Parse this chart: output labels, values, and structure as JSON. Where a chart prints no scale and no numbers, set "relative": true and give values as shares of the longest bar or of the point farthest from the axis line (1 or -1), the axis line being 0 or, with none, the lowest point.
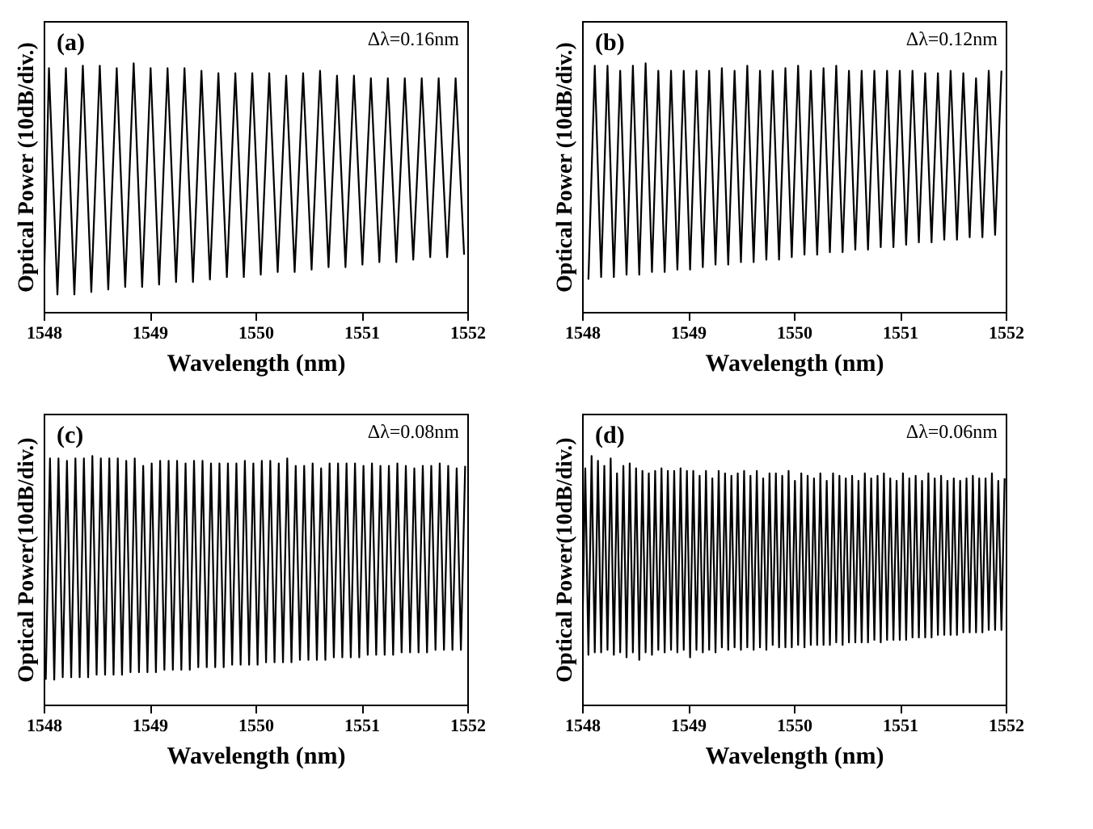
{
  "chart_data": [
    {
      "type": "line",
      "relative": true,
      "xlim": [
        1548,
        1552
      ],
      "xticks": [
        1548,
        1549,
        1550,
        1551,
        1552
      ],
      "xlabel": "Wavelength (nm)",
      "ylabel": "Optical Power (10dB/div.)",
      "annotations": [
        "(a)",
        "Δλ=0.16nm"
      ],
      "series": [
        {
          "color": "#000000",
          "x": [
            1548.0,
            1548.05,
            1548.13,
            1548.21,
            1548.29,
            1548.37,
            1548.45,
            1548.53,
            1548.61,
            1548.69,
            1548.77,
            1548.85,
            1548.93,
            1549.01,
            1549.09,
            1549.17,
            1549.25,
            1549.33,
            1549.41,
            1549.49,
            1549.57,
            1549.65,
            1549.73,
            1549.81,
            1549.89,
            1549.97,
            1550.05,
            1550.13,
            1550.21,
            1550.29,
            1550.37,
            1550.45,
            1550.53,
            1550.61,
            1550.69,
            1550.77,
            1550.85,
            1550.93,
            1551.01,
            1551.09,
            1551.17,
            1551.25,
            1551.33,
            1551.41,
            1551.49,
            1551.57,
            1551.65,
            1551.73,
            1551.81,
            1551.89,
            1551.97
          ],
          "values": [
            0.05,
            0.98,
            0.07,
            0.98,
            0.07,
            0.99,
            0.08,
            0.99,
            0.09,
            0.98,
            0.1,
            1.0,
            0.1,
            0.98,
            0.11,
            0.98,
            0.12,
            0.98,
            0.12,
            0.97,
            0.13,
            0.96,
            0.14,
            0.96,
            0.14,
            0.96,
            0.15,
            0.96,
            0.16,
            0.95,
            0.16,
            0.96,
            0.17,
            0.97,
            0.18,
            0.95,
            0.18,
            0.95,
            0.19,
            0.94,
            0.2,
            0.94,
            0.2,
            0.94,
            0.21,
            0.94,
            0.22,
            0.94,
            0.22,
            0.94,
            0.23
          ]
        }
      ]
    },
    {
      "type": "line",
      "relative": true,
      "xlim": [
        1548,
        1552
      ],
      "xticks": [
        1548,
        1549,
        1550,
        1551,
        1552
      ],
      "xlabel": "Wavelength (nm)",
      "ylabel": "Optical Power (10dB/div.)",
      "annotations": [
        "(b)",
        "Δλ=0.12nm"
      ],
      "series": [
        {
          "color": "#000000",
          "x": [
            1548.06,
            1548.12,
            1548.18,
            1548.24,
            1548.3,
            1548.36,
            1548.42,
            1548.48,
            1548.54,
            1548.6,
            1548.66,
            1548.72,
            1548.78,
            1548.84,
            1548.9,
            1548.96,
            1549.02,
            1549.08,
            1549.14,
            1549.2,
            1549.26,
            1549.32,
            1549.38,
            1549.44,
            1549.5,
            1549.56,
            1549.62,
            1549.68,
            1549.74,
            1549.8,
            1549.86,
            1549.92,
            1549.98,
            1550.04,
            1550.1,
            1550.16,
            1550.22,
            1550.28,
            1550.34,
            1550.4,
            1550.46,
            1550.52,
            1550.58,
            1550.64,
            1550.7,
            1550.76,
            1550.82,
            1550.88,
            1550.94,
            1551.0,
            1551.06,
            1551.12,
            1551.18,
            1551.24,
            1551.3,
            1551.36,
            1551.42,
            1551.48,
            1551.54,
            1551.6,
            1551.66,
            1551.72,
            1551.78,
            1551.84,
            1551.9,
            1551.96
          ],
          "values": [
            0.13,
            0.99,
            0.14,
            0.99,
            0.14,
            0.97,
            0.15,
            0.99,
            0.15,
            1.0,
            0.16,
            0.97,
            0.16,
            0.97,
            0.17,
            0.97,
            0.17,
            0.97,
            0.18,
            0.97,
            0.19,
            0.98,
            0.19,
            0.97,
            0.2,
            0.99,
            0.2,
            0.97,
            0.21,
            0.97,
            0.21,
            0.98,
            0.22,
            0.99,
            0.23,
            0.97,
            0.23,
            0.98,
            0.24,
            0.99,
            0.24,
            0.97,
            0.25,
            0.97,
            0.25,
            0.97,
            0.26,
            0.97,
            0.26,
            0.97,
            0.27,
            0.97,
            0.28,
            0.96,
            0.28,
            0.96,
            0.29,
            0.97,
            0.29,
            0.96,
            0.3,
            0.94,
            0.3,
            0.97,
            0.31,
            0.97
          ]
        }
      ]
    },
    {
      "type": "line",
      "relative": true,
      "xlim": [
        1548,
        1552
      ],
      "xticks": [
        1548,
        1549,
        1550,
        1551,
        1552
      ],
      "xlabel": "Wavelength (nm)",
      "ylabel": "Optical Power(10dB/div.)",
      "annotations": [
        "(c)",
        "Δλ=0.08nm"
      ],
      "series": [
        {
          "color": "#000000",
          "x": [
            1548.02,
            1548.06,
            1548.1,
            1548.14,
            1548.18,
            1548.22,
            1548.26,
            1548.3,
            1548.34,
            1548.38,
            1548.42,
            1548.46,
            1548.5,
            1548.54,
            1548.58,
            1548.62,
            1548.66,
            1548.7,
            1548.74,
            1548.78,
            1548.82,
            1548.86,
            1548.9,
            1548.94,
            1548.98,
            1549.02,
            1549.06,
            1549.1,
            1549.14,
            1549.18,
            1549.22,
            1549.26,
            1549.3,
            1549.34,
            1549.38,
            1549.42,
            1549.46,
            1549.5,
            1549.54,
            1549.58,
            1549.62,
            1549.66,
            1549.7,
            1549.74,
            1549.78,
            1549.82,
            1549.86,
            1549.9,
            1549.94,
            1549.98,
            1550.02,
            1550.06,
            1550.1,
            1550.14,
            1550.18,
            1550.22,
            1550.26,
            1550.3,
            1550.34,
            1550.38,
            1550.42,
            1550.46,
            1550.5,
            1550.54,
            1550.58,
            1550.62,
            1550.66,
            1550.7,
            1550.74,
            1550.78,
            1550.82,
            1550.86,
            1550.9,
            1550.94,
            1550.98,
            1551.02,
            1551.06,
            1551.1,
            1551.14,
            1551.18,
            1551.22,
            1551.26,
            1551.3,
            1551.34,
            1551.38,
            1551.42,
            1551.46,
            1551.5,
            1551.54,
            1551.58,
            1551.62,
            1551.66,
            1551.7,
            1551.74,
            1551.78,
            1551.82,
            1551.86,
            1551.9,
            1551.94,
            1551.98
          ],
          "values": [
            0.1,
            0.99,
            0.1,
            0.99,
            0.11,
            0.98,
            0.11,
            0.99,
            0.11,
            0.99,
            0.11,
            1.0,
            0.12,
            0.99,
            0.12,
            0.99,
            0.12,
            0.99,
            0.12,
            0.98,
            0.13,
            0.99,
            0.13,
            0.96,
            0.13,
            0.97,
            0.13,
            0.98,
            0.14,
            0.98,
            0.14,
            0.98,
            0.14,
            0.97,
            0.14,
            0.98,
            0.15,
            0.98,
            0.15,
            0.97,
            0.15,
            0.97,
            0.15,
            0.97,
            0.16,
            0.97,
            0.16,
            0.98,
            0.16,
            0.97,
            0.16,
            0.98,
            0.17,
            0.98,
            0.17,
            0.97,
            0.17,
            0.99,
            0.17,
            0.96,
            0.18,
            0.96,
            0.18,
            0.97,
            0.18,
            0.95,
            0.18,
            0.97,
            0.19,
            0.97,
            0.19,
            0.97,
            0.19,
            0.97,
            0.19,
            0.96,
            0.2,
            0.97,
            0.2,
            0.96,
            0.2,
            0.96,
            0.2,
            0.97,
            0.21,
            0.96,
            0.21,
            0.95,
            0.21,
            0.96,
            0.21,
            0.96,
            0.22,
            0.97,
            0.22,
            0.96,
            0.22,
            0.95,
            0.22,
            0.96
          ]
        }
      ]
    },
    {
      "type": "line",
      "relative": true,
      "xlim": [
        1548,
        1552
      ],
      "xticks": [
        1548,
        1549,
        1550,
        1551,
        1552
      ],
      "xlabel": "Wavelength (nm)",
      "ylabel": "Optical Power(10dB/div.)",
      "annotations": [
        "(d)",
        "Δλ=0.06nm"
      ],
      "series": [
        {
          "color": "#000000",
          "x": [
            1548.0,
            1548.03,
            1548.06,
            1548.09,
            1548.12,
            1548.15,
            1548.18,
            1548.21,
            1548.24,
            1548.27,
            1548.3,
            1548.33,
            1548.36,
            1548.39,
            1548.42,
            1548.45,
            1548.48,
            1548.51,
            1548.54,
            1548.57,
            1548.6,
            1548.63,
            1548.66,
            1548.69,
            1548.72,
            1548.75,
            1548.78,
            1548.81,
            1548.84,
            1548.87,
            1548.9,
            1548.93,
            1548.96,
            1548.99,
            1549.02,
            1549.05,
            1549.08,
            1549.11,
            1549.14,
            1549.17,
            1549.2,
            1549.23,
            1549.26,
            1549.29,
            1549.32,
            1549.35,
            1549.38,
            1549.41,
            1549.44,
            1549.47,
            1549.5,
            1549.53,
            1549.56,
            1549.59,
            1549.62,
            1549.65,
            1549.68,
            1549.71,
            1549.74,
            1549.77,
            1549.8,
            1549.83,
            1549.86,
            1549.89,
            1549.92,
            1549.95,
            1549.98,
            1550.01,
            1550.04,
            1550.07,
            1550.1,
            1550.13,
            1550.16,
            1550.19,
            1550.22,
            1550.25,
            1550.28,
            1550.31,
            1550.34,
            1550.37,
            1550.4,
            1550.43,
            1550.46,
            1550.49,
            1550.52,
            1550.55,
            1550.58,
            1550.61,
            1550.64,
            1550.67,
            1550.7,
            1550.73,
            1550.76,
            1550.79,
            1550.82,
            1550.85,
            1550.88,
            1550.91,
            1550.94,
            1550.97,
            1551.0,
            1551.03,
            1551.06,
            1551.09,
            1551.12,
            1551.15,
            1551.18,
            1551.21,
            1551.24,
            1551.27,
            1551.3,
            1551.33,
            1551.36,
            1551.39,
            1551.42,
            1551.45,
            1551.48,
            1551.51,
            1551.54,
            1551.57,
            1551.6,
            1551.63,
            1551.66,
            1551.69,
            1551.72,
            1551.75,
            1551.78,
            1551.81,
            1551.84,
            1551.87,
            1551.9,
            1551.93,
            1551.96,
            1551.99
          ],
          "values": [
            0.21,
            0.95,
            0.2,
            1.0,
            0.21,
            0.98,
            0.21,
            0.96,
            0.22,
            0.99,
            0.2,
            0.93,
            0.21,
            0.96,
            0.19,
            0.97,
            0.21,
            0.95,
            0.18,
            0.94,
            0.21,
            0.93,
            0.2,
            0.94,
            0.22,
            0.95,
            0.21,
            0.94,
            0.22,
            0.94,
            0.21,
            0.95,
            0.22,
            0.94,
            0.19,
            0.94,
            0.22,
            0.92,
            0.21,
            0.94,
            0.22,
            0.91,
            0.21,
            0.94,
            0.23,
            0.93,
            0.22,
            0.92,
            0.23,
            0.93,
            0.22,
            0.94,
            0.23,
            0.92,
            0.22,
            0.94,
            0.23,
            0.91,
            0.22,
            0.93,
            0.24,
            0.93,
            0.23,
            0.92,
            0.23,
            0.94,
            0.23,
            0.9,
            0.24,
            0.93,
            0.23,
            0.92,
            0.24,
            0.91,
            0.24,
            0.93,
            0.24,
            0.9,
            0.24,
            0.93,
            0.25,
            0.92,
            0.24,
            0.91,
            0.25,
            0.92,
            0.25,
            0.9,
            0.25,
            0.93,
            0.25,
            0.91,
            0.26,
            0.92,
            0.25,
            0.93,
            0.26,
            0.91,
            0.26,
            0.9,
            0.26,
            0.93,
            0.26,
            0.91,
            0.27,
            0.92,
            0.27,
            0.9,
            0.27,
            0.93,
            0.27,
            0.91,
            0.28,
            0.92,
            0.28,
            0.9,
            0.28,
            0.91,
            0.28,
            0.9,
            0.29,
            0.91,
            0.29,
            0.92,
            0.29,
            0.91,
            0.29,
            0.91,
            0.3,
            0.93,
            0.3,
            0.9,
            0.3,
            0.91
          ]
        }
      ]
    }
  ]
}
